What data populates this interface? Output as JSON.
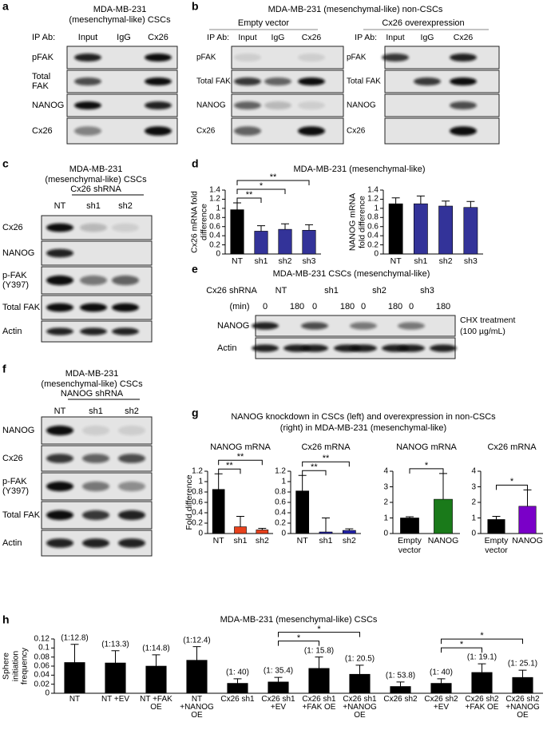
{
  "figure": {
    "a": {
      "label": "a",
      "title": [
        "MDA-MB-231",
        "(mesenchymal-like) CSCs"
      ],
      "ip_label": "IP Ab:",
      "lanes": [
        "Input",
        "IgG",
        "Cx26"
      ],
      "rows": [
        "pFAK",
        "Total FAK",
        "NANOG",
        "Cx26"
      ]
    },
    "b": {
      "label": "b",
      "title": "MDA-MB-231 (mesenchymal-like) non-CSCs",
      "groups": [
        {
          "title": "Empty vector",
          "ip_label": "IP Ab:",
          "lanes": [
            "Input",
            "IgG",
            "Cx26"
          ],
          "rows": [
            "pFAK",
            "Total FAK",
            "NANOG",
            "Cx26"
          ]
        },
        {
          "title": "Cx26 overexpression",
          "ip_label": "IP Ab:",
          "lanes": [
            "Input",
            "IgG",
            "Cx26"
          ],
          "rows": [
            "pFAK",
            "Total FAK",
            "NANOG",
            "Cx26"
          ]
        }
      ]
    },
    "c": {
      "label": "c",
      "title": [
        "MDA-MB-231",
        "(mesenchymal-like) CSCs",
        "Cx26 shRNA"
      ],
      "lanes": [
        "NT",
        "sh1",
        "sh2"
      ],
      "rows": [
        "Cx26",
        "NANOG",
        "p-FAK (Y397)",
        "Total FAK",
        "Actin"
      ]
    },
    "d": {
      "label": "d",
      "title": "MDA-MB-231 (mesenchymal-like)"
    },
    "e": {
      "label": "e",
      "title": "MDA-MB-231 CSCs (mesenchymal-like)",
      "shrna_label": "Cx26 shRNA",
      "groups": [
        "NT",
        "sh1",
        "sh2",
        "sh3"
      ],
      "time_label": "(min)",
      "times": [
        0,
        180,
        0,
        180,
        0,
        180,
        0,
        180
      ],
      "rows": [
        "NANOG",
        "Actin"
      ],
      "treatment": [
        "CHX treatment",
        "(100 µg/mL)"
      ]
    },
    "f": {
      "label": "f",
      "title": [
        "MDA-MB-231",
        "(mesenchymal-like) CSCs",
        "NANOG shRNA"
      ],
      "lanes": [
        "NT",
        "sh1",
        "sh2"
      ],
      "rows": [
        "NANOG",
        "Cx26",
        "p-FAK (Y397)",
        "Total FAK",
        "Actin"
      ]
    },
    "g": {
      "label": "g",
      "title": [
        "NANOG knockdown in CSCs (left) and overexpression in non-CSCs",
        "(right) in MDA-MB-231 (mesenchymal-like)"
      ]
    },
    "h": {
      "label": "h"
    }
  },
  "chart_data": [
    {
      "type": "bar",
      "ylabel": "Cx26 mRNA fold difference",
      "categories": [
        "NT",
        "sh1",
        "sh2",
        "sh3"
      ],
      "values": [
        0.97,
        0.5,
        0.54,
        0.52
      ],
      "errors": [
        0.15,
        0.12,
        0.12,
        0.12
      ],
      "colors": [
        "#000000",
        "#333399",
        "#333399",
        "#333399"
      ],
      "ylim": [
        0,
        1.4
      ],
      "yticks": [
        0,
        0.2,
        0.4,
        0.6,
        0.8,
        1,
        1.2,
        1.4
      ],
      "significance": [
        {
          "pair": [
            "NT",
            "sh1"
          ],
          "label": "**"
        },
        {
          "pair": [
            "NT",
            "sh2"
          ],
          "label": "*"
        },
        {
          "pair": [
            "NT",
            "sh3"
          ],
          "label": "**"
        }
      ]
    },
    {
      "type": "bar",
      "ylabel": "NANOG mRNA fold difference",
      "categories": [
        "NT",
        "sh1",
        "sh2",
        "sh3"
      ],
      "values": [
        1.1,
        1.1,
        1.05,
        1.02
      ],
      "errors": [
        0.13,
        0.17,
        0.11,
        0.13
      ],
      "colors": [
        "#000000",
        "#333399",
        "#333399",
        "#333399"
      ],
      "ylim": [
        0,
        1.4
      ],
      "yticks": [
        0,
        0.2,
        0.4,
        0.6,
        0.8,
        1,
        1.2,
        1.4
      ]
    },
    {
      "type": "bar",
      "title": "NANOG mRNA",
      "ylabel": "Fold difference",
      "categories": [
        "NT",
        "sh1",
        "sh2"
      ],
      "values": [
        0.85,
        0.13,
        0.07
      ],
      "errors": [
        0.3,
        0.2,
        0.03
      ],
      "colors": [
        "#000000",
        "#e8411c",
        "#e8411c"
      ],
      "ylim": [
        0,
        1.2
      ],
      "yticks": [
        0,
        0.2,
        0.4,
        0.6,
        0.8,
        1,
        1.2
      ],
      "significance": [
        {
          "pair": [
            "NT",
            "sh1"
          ],
          "label": "**"
        },
        {
          "pair": [
            "NT",
            "sh2"
          ],
          "label": "**"
        }
      ]
    },
    {
      "type": "bar",
      "title": "Cx26 mRNA",
      "categories": [
        "NT",
        "sh1",
        "sh2"
      ],
      "values": [
        0.82,
        0.03,
        0.06
      ],
      "errors": [
        0.3,
        0.27,
        0.03
      ],
      "colors": [
        "#000000",
        "#2222aa",
        "#2222aa"
      ],
      "ylim": [
        0,
        1.2
      ],
      "yticks": [
        0,
        0.2,
        0.4,
        0.6,
        0.8,
        1,
        1.2
      ],
      "significance": [
        {
          "pair": [
            "NT",
            "sh1"
          ],
          "label": "**"
        },
        {
          "pair": [
            "NT",
            "sh2"
          ],
          "label": "**"
        }
      ]
    },
    {
      "type": "bar",
      "title": "NANOG mRNA",
      "categories": [
        "Empty vector",
        "NANOG"
      ],
      "values": [
        1.0,
        2.2
      ],
      "errors": [
        0.08,
        1.65
      ],
      "colors": [
        "#000000",
        "#1a7a1a"
      ],
      "ylim": [
        0,
        4
      ],
      "yticks": [
        0,
        1,
        2,
        3,
        4
      ],
      "significance": [
        {
          "pair": [
            "Empty vector",
            "NANOG"
          ],
          "label": "*"
        }
      ]
    },
    {
      "type": "bar",
      "title": "Cx26 mRNA",
      "categories": [
        "Empty vector",
        "NANOG"
      ],
      "values": [
        0.9,
        1.75
      ],
      "errors": [
        0.2,
        1.05
      ],
      "colors": [
        "#000000",
        "#7a00c8"
      ],
      "ylim": [
        0,
        4
      ],
      "yticks": [
        0,
        1,
        2,
        3,
        4
      ],
      "significance": [
        {
          "pair": [
            "Empty vector",
            "NANOG"
          ],
          "label": "*"
        }
      ]
    },
    {
      "type": "bar",
      "title": "MDA-MB-231 (mesenchymal-like) CSCs",
      "ylabel": "Sphere initiation frequency",
      "categories": [
        "NT",
        "NT +EV",
        "NT +FAK OE",
        "NT +NANOG OE",
        "Cx26 sh1",
        "Cx26 sh1 +EV",
        "Cx26 sh1 +FAK OE",
        "Cx26 sh1 +NANOG OE",
        "Cx26 sh2",
        "Cx26 sh2 +EV",
        "Cx26 sh2 +FAK OE",
        "Cx26 sh2 +NANOG OE"
      ],
      "values": [
        0.068,
        0.067,
        0.06,
        0.073,
        0.022,
        0.025,
        0.055,
        0.042,
        0.015,
        0.022,
        0.046,
        0.035
      ],
      "errors": [
        0.04,
        0.027,
        0.025,
        0.03,
        0.01,
        0.01,
        0.025,
        0.02,
        0.01,
        0.01,
        0.019,
        0.016
      ],
      "colors": [
        "#000000",
        "#000000",
        "#000000",
        "#000000",
        "#000000",
        "#000000",
        "#000000",
        "#000000",
        "#000000",
        "#000000",
        "#000000",
        "#000000"
      ],
      "annotations": [
        "(1:12.8)",
        "(1:13.3)",
        "(1:14.8)",
        "(1:12.4)",
        "(1: 40)",
        "(1: 35.4)",
        "(1: 15.8)",
        "(1: 20.5)",
        "(1: 53.8)",
        "(1: 40)",
        "(1: 19.1)",
        "(1: 25.1)"
      ],
      "ylim": [
        0,
        0.12
      ],
      "yticks": [
        0,
        0.02,
        0.04,
        0.06,
        0.08,
        0.1,
        0.12
      ],
      "significance": [
        {
          "pair": [
            "Cx26 sh1 +EV",
            "Cx26 sh1 +FAK OE"
          ],
          "label": "*"
        },
        {
          "pair": [
            "Cx26 sh1 +EV",
            "Cx26 sh1 +NANOG OE"
          ],
          "label": "*"
        },
        {
          "pair": [
            "Cx26 sh2 +EV",
            "Cx26 sh2 +FAK OE"
          ],
          "label": "*"
        },
        {
          "pair": [
            "Cx26 sh2 +EV",
            "Cx26 sh2 +NANOG OE"
          ],
          "label": "*"
        }
      ]
    }
  ]
}
